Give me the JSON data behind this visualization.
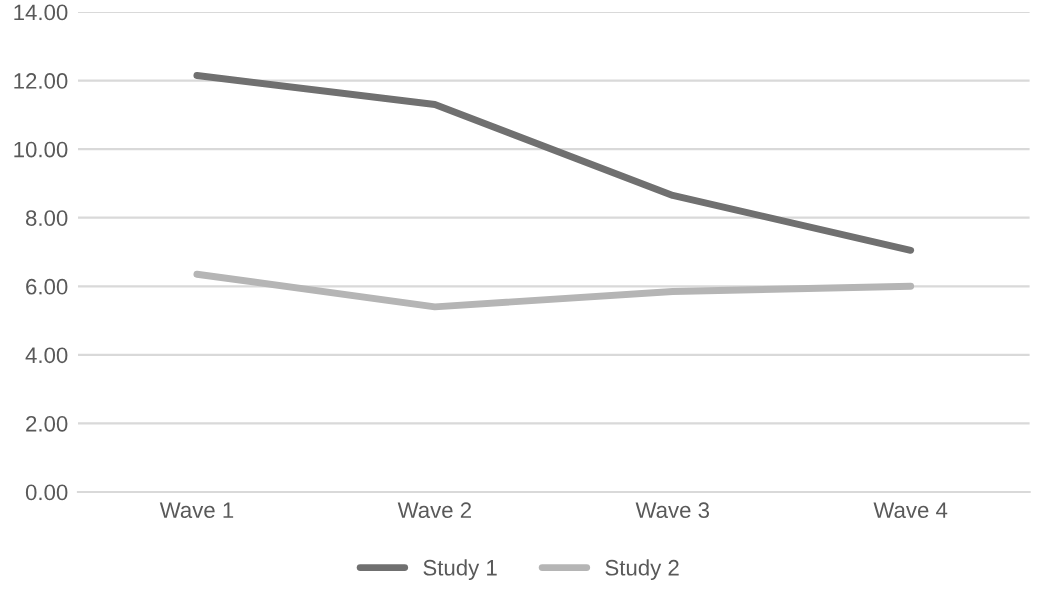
{
  "chart_data": {
    "type": "line",
    "categories": [
      "Wave 1",
      "Wave 2",
      "Wave 3",
      "Wave 4"
    ],
    "series": [
      {
        "name": "Study 1",
        "color": "#707070",
        "values": [
          12.15,
          11.3,
          8.65,
          7.05
        ]
      },
      {
        "name": "Study 2",
        "color": "#b5b5b5",
        "values": [
          6.35,
          5.4,
          5.85,
          6.0
        ]
      }
    ],
    "ylim": [
      0,
      14
    ],
    "yticks": [
      {
        "value": 0,
        "label": "0.00"
      },
      {
        "value": 2,
        "label": "2.00"
      },
      {
        "value": 4,
        "label": "4.00"
      },
      {
        "value": 6,
        "label": "6.00"
      },
      {
        "value": 8,
        "label": "8.00"
      },
      {
        "value": 10,
        "label": "10.00"
      },
      {
        "value": 12,
        "label": "12.00"
      },
      {
        "value": 14,
        "label": "14.00"
      }
    ],
    "grid": "y",
    "legend": "bottom",
    "line_style": "solid",
    "marker": "none"
  }
}
